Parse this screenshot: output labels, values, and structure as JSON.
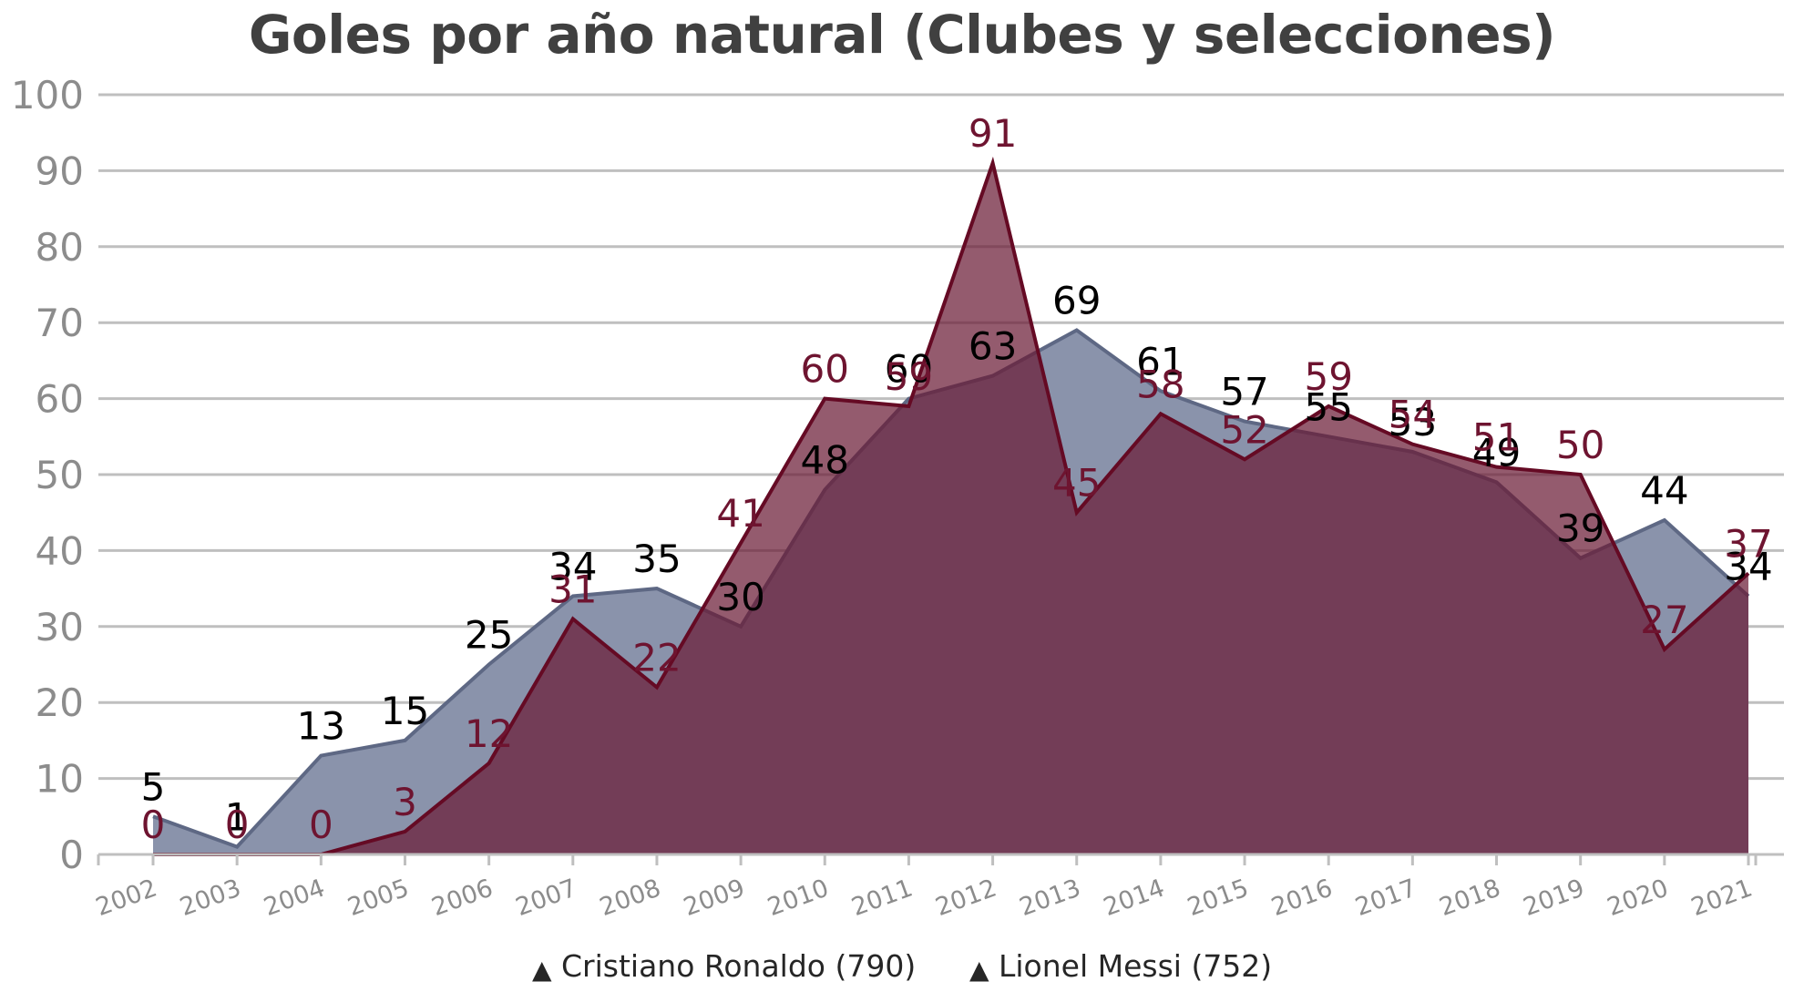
{
  "chart_data": {
    "type": "area",
    "title": "Goles por año natural (Clubes y selecciones)",
    "xlabel": "",
    "ylabel": "",
    "ylim": [
      0,
      100
    ],
    "yticks": [
      0,
      10,
      20,
      30,
      40,
      50,
      60,
      70,
      80,
      90,
      100
    ],
    "grid": true,
    "legend_position": "bottom",
    "categories": [
      "2002",
      "2003",
      "2004",
      "2005",
      "2006",
      "2007",
      "2008",
      "2009",
      "2010",
      "2011",
      "2012",
      "2013",
      "2014",
      "2015",
      "2016",
      "2017",
      "2018",
      "2019",
      "2020",
      "2021"
    ],
    "series": [
      {
        "name": "Cristiano Ronaldo (790)",
        "values": [
          5,
          1,
          13,
          15,
          25,
          34,
          35,
          30,
          48,
          60,
          63,
          69,
          61,
          57,
          55,
          53,
          49,
          39,
          44,
          34
        ],
        "fill": "#8a93ab",
        "stroke": "#5e6884",
        "label_color": "#000000",
        "marker": "▲"
      },
      {
        "name": "Lionel Messi (752)",
        "values": [
          0,
          0,
          0,
          3,
          12,
          31,
          22,
          41,
          60,
          59,
          91,
          45,
          58,
          52,
          59,
          54,
          51,
          50,
          27,
          37
        ],
        "fill": "#6b1c36",
        "fill_opacity": 0.72,
        "stroke": "#650a24",
        "label_color": "#6e1430",
        "marker": "▲"
      }
    ]
  }
}
